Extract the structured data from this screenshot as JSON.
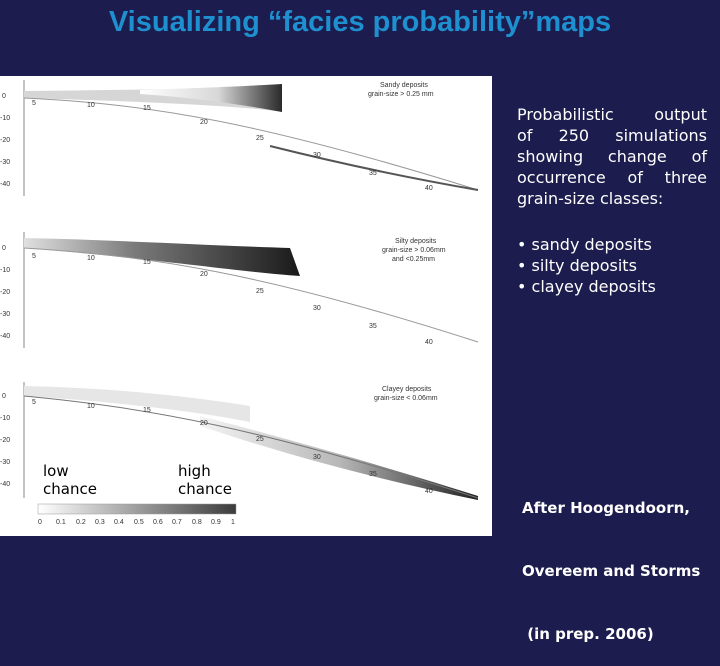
{
  "slide": {
    "title": "Visualizing “facies probability”maps",
    "description_lines": [
      "Probabilistic output",
      "of 250 simulations",
      "showing change of",
      "occurrence of three",
      "grain-size classes:"
    ],
    "bullets": [
      "• sandy deposits",
      "• silty deposits",
      "• clayey deposits"
    ],
    "citation_lines": [
      "After Hoogendoorn,",
      "Overeem and Storms",
      " (in prep. 2006)"
    ]
  },
  "figure": {
    "panels": [
      {
        "legend_line1": "Sandy deposits",
        "legend_line2": "grain-size > 0.25 mm",
        "legend_line3": "",
        "y_ticks": [
          "0",
          "-10",
          "-20",
          "-30",
          "-40"
        ],
        "x_ticks": [
          "5",
          "10",
          "15",
          "20",
          "25",
          "30",
          "35",
          "40"
        ]
      },
      {
        "legend_line1": "Silty deposits",
        "legend_line2": "grain-size > 0.06mm",
        "legend_line3": "and <0.25mm",
        "y_ticks": [
          "0",
          "-10",
          "-20",
          "-30",
          "-40"
        ],
        "x_ticks": [
          "5",
          "10",
          "15",
          "20",
          "25",
          "30",
          "35",
          "40"
        ]
      },
      {
        "legend_line1": "Clayey deposits",
        "legend_line2": "grain-size < 0.06mm",
        "legend_line3": "",
        "y_ticks": [
          "0",
          "-10",
          "-20",
          "-30",
          "-40"
        ],
        "x_ticks": [
          "5",
          "10",
          "15",
          "20",
          "25",
          "30",
          "35",
          "40"
        ]
      }
    ],
    "colorbar": {
      "low_label": "low\nchance",
      "high_label": "high\nchance",
      "ticks": [
        "0",
        "0.1",
        "0.2",
        "0.3",
        "0.4",
        "0.5",
        "0.6",
        "0.7",
        "0.8",
        "0.9",
        "1"
      ]
    }
  },
  "colors": {
    "background": "#1c1c4e",
    "title": "#1e90d0",
    "text": "#ffffff"
  }
}
